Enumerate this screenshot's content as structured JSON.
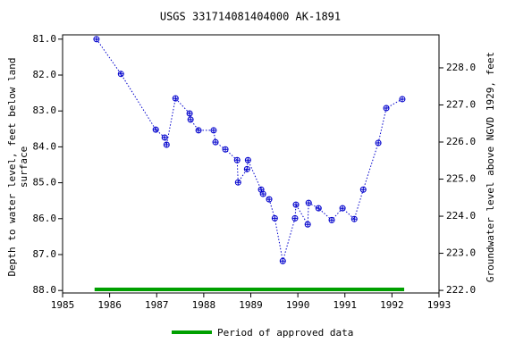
{
  "chart_data": {
    "type": "line",
    "title": "USGS 331714081404000 AK-1891",
    "ylabel": [
      "Depth to water level, feet below land",
      "surface"
    ],
    "y2label": "Groundwater level above NGVD 1929, feet",
    "x": [
      1985.72,
      1986.24,
      1986.98,
      1987.17,
      1987.21,
      1987.4,
      1987.7,
      1987.72,
      1987.89,
      1988.21,
      1988.25,
      1988.46,
      1988.71,
      1988.73,
      1988.92,
      1988.94,
      1989.22,
      1989.26,
      1989.39,
      1989.51,
      1989.68,
      1989.94,
      1989.96,
      1990.21,
      1990.23,
      1990.44,
      1990.72,
      1990.95,
      1991.2,
      1991.39,
      1991.71,
      1991.88,
      1992.22
    ],
    "series": [
      {
        "color": "#0000cc",
        "values": [
          81.0,
          81.97,
          83.52,
          83.74,
          83.94,
          82.65,
          83.07,
          83.24,
          83.54,
          83.54,
          83.87,
          84.07,
          84.37,
          84.99,
          84.62,
          84.37,
          85.19,
          85.31,
          85.46,
          85.99,
          87.18,
          85.99,
          85.61,
          86.16,
          85.56,
          85.71,
          86.04,
          85.71,
          86.01,
          85.19,
          83.89,
          82.92,
          82.67
        ]
      }
    ],
    "approved_period": {
      "name": "Period of approved data",
      "color": "#00a000",
      "x": [
        1985.68,
        1992.26
      ]
    },
    "xlim": [
      1985,
      1993
    ],
    "xticks": [
      1985,
      1986,
      1987,
      1988,
      1989,
      1990,
      1991,
      1992,
      1993
    ],
    "ylim": [
      80.88,
      88.07
    ],
    "y_inverted": true,
    "yticks": [
      {
        "value": 81,
        "label": "81.0"
      },
      {
        "value": 82,
        "label": "82.0"
      },
      {
        "value": 83,
        "label": "83.0"
      },
      {
        "value": 84,
        "label": "84.0"
      },
      {
        "value": 85,
        "label": "85.0"
      },
      {
        "value": 86,
        "label": "86.0"
      },
      {
        "value": 87,
        "label": "87.0"
      },
      {
        "value": 88,
        "label": "88.0"
      }
    ],
    "y2lim": [
      221.93,
      228.89
    ],
    "y2ticks": [
      {
        "value": 222,
        "label": "222.0"
      },
      {
        "value": 223,
        "label": "223.0"
      },
      {
        "value": 224,
        "label": "224.0"
      },
      {
        "value": 225,
        "label": "225.0"
      },
      {
        "value": 226,
        "label": "226.0"
      },
      {
        "value": 227,
        "label": "227.0"
      },
      {
        "value": 228,
        "label": "228.0"
      }
    ]
  }
}
